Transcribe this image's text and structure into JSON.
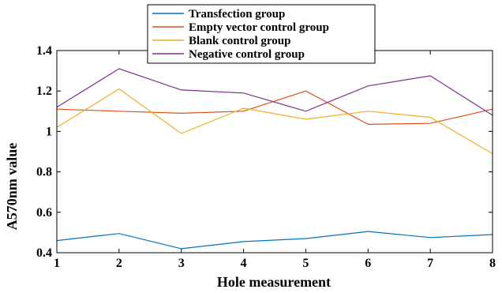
{
  "chart_data": {
    "type": "line",
    "xlabel": "Hole measurement",
    "ylabel": "A570nm value",
    "x": [
      1,
      2,
      3,
      4,
      5,
      6,
      7,
      8
    ],
    "xticks": [
      "1",
      "2",
      "3",
      "4",
      "5",
      "6",
      "7",
      "8"
    ],
    "ylim": [
      0.4,
      1.4
    ],
    "yticks": [
      "0.4",
      "0.6",
      "0.8",
      "1",
      "1.2",
      "1.4"
    ],
    "grid": false,
    "legend_position": "top-center",
    "series": [
      {
        "name": "Transfection group",
        "color": "#0072BD",
        "values": [
          0.46,
          0.495,
          0.42,
          0.455,
          0.47,
          0.505,
          0.475,
          0.49
        ]
      },
      {
        "name": "Empty vector control group",
        "color": "#D95319",
        "values": [
          1.11,
          1.1,
          1.09,
          1.1,
          1.2,
          1.035,
          1.04,
          1.11
        ]
      },
      {
        "name": "Blank control group",
        "color": "#EDB120",
        "values": [
          1.02,
          1.21,
          0.99,
          1.115,
          1.06,
          1.1,
          1.07,
          0.89
        ]
      },
      {
        "name": "Negative control group",
        "color": "#7E2F8E",
        "values": [
          1.12,
          1.31,
          1.205,
          1.19,
          1.1,
          1.225,
          1.275,
          1.08
        ]
      }
    ]
  }
}
